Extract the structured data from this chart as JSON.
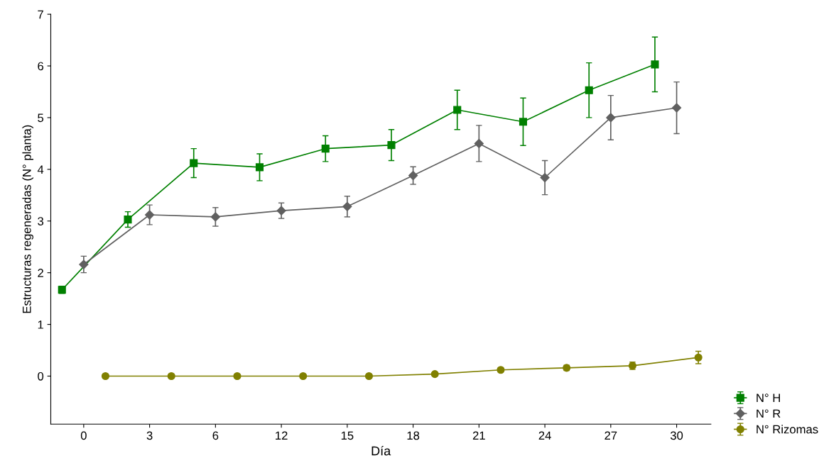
{
  "chart_data": {
    "type": "line",
    "xlabel": "Día",
    "ylabel": "Estructuras regeneradas (N° planta)",
    "categories": [
      "0",
      "3",
      "6",
      "12",
      "15",
      "18",
      "21",
      "24",
      "27",
      "30"
    ],
    "ylim": [
      -0.93,
      7
    ],
    "yticks": [
      0,
      1,
      2,
      3,
      4,
      5,
      6,
      7
    ],
    "grid": false,
    "legend": "bottom right",
    "line_style": "solid",
    "series": [
      {
        "name": "N° H",
        "color": "#008000",
        "marker": "square",
        "values": [
          1.67,
          3.03,
          4.12,
          4.04,
          4.4,
          4.47,
          5.15,
          4.92,
          5.53,
          6.03
        ],
        "errors": [
          0.07,
          0.15,
          0.28,
          0.26,
          0.25,
          0.3,
          0.38,
          0.46,
          0.53,
          0.53
        ]
      },
      {
        "name": "N° R",
        "color": "#606060",
        "marker": "diamond",
        "values": [
          2.16,
          3.12,
          3.08,
          3.2,
          3.28,
          3.88,
          4.5,
          3.84,
          5.0,
          5.19
        ],
        "errors": [
          0.16,
          0.19,
          0.18,
          0.15,
          0.2,
          0.17,
          0.35,
          0.33,
          0.43,
          0.5
        ]
      },
      {
        "name": "N° Rizomas",
        "color": "#808000",
        "marker": "circle",
        "values": [
          0,
          0,
          0,
          0,
          0,
          0.04,
          0.12,
          0.16,
          0.2,
          0.36
        ],
        "errors": [
          null,
          null,
          null,
          null,
          null,
          0.03,
          0.04,
          0.05,
          0.07,
          0.12
        ]
      }
    ]
  }
}
